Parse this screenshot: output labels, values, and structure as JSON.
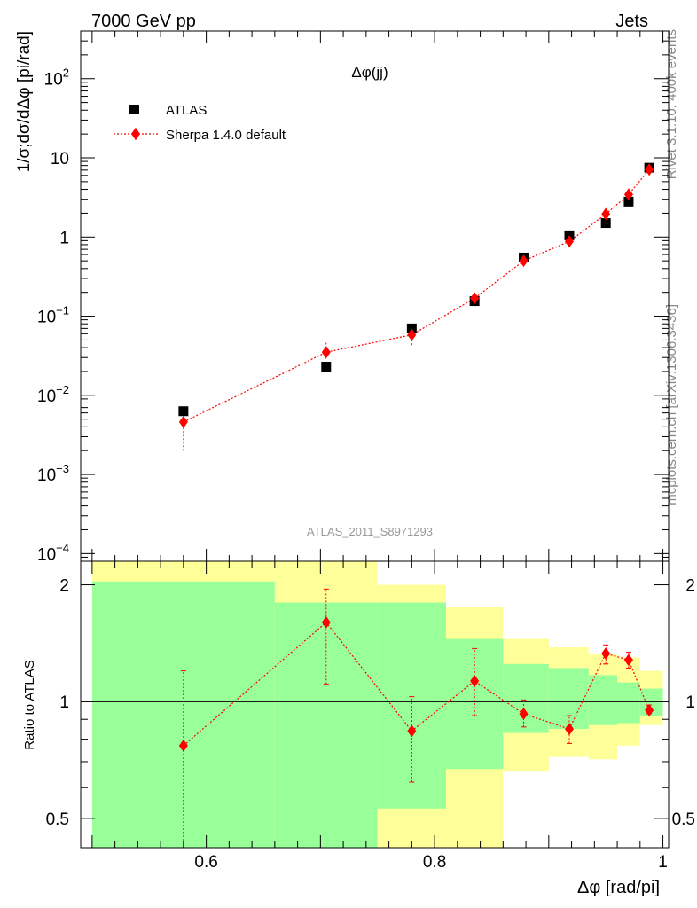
{
  "header": {
    "left": "7000 GeV pp",
    "right": "Jets"
  },
  "side_labels": {
    "rivet": "Rivet 3.1.10,  400k events",
    "mcplots": "mcplots.cern.ch [arXiv:1306.3436]"
  },
  "colors": {
    "data": "#000000",
    "mc": "#ff0000",
    "band_inner": "#99ff99",
    "band_outer": "#ffff99"
  },
  "chart_data": [
    {
      "type": "scatter",
      "title": "Δφ(jj)",
      "analysis": "ATLAS_2011_S8971293",
      "ylabel": "1/σ;dσ/dΔφ [pi/rad]",
      "yscale": "log",
      "ylim": [
        8e-05,
        400
      ],
      "xlim": [
        0.49,
        1.005
      ],
      "ytick_labels": [
        {
          "v": 100,
          "base": "10",
          "exp": "2"
        },
        {
          "v": 10,
          "base": "10",
          "exp": ""
        },
        {
          "v": 1,
          "base": "1",
          "exp": ""
        },
        {
          "v": 0.1,
          "base": "10",
          "exp": "−1"
        },
        {
          "v": 0.01,
          "base": "10",
          "exp": "−2"
        },
        {
          "v": 0.001,
          "base": "10",
          "exp": "−3"
        },
        {
          "v": 0.0001,
          "base": "10",
          "exp": "−4"
        }
      ],
      "legend": [
        "ATLAS",
        "Sherpa 1.4.0 default"
      ],
      "legend_position": "top-left",
      "series": [
        {
          "name": "ATLAS",
          "marker": "square",
          "x": [
            0.58,
            0.705,
            0.78,
            0.835,
            0.878,
            0.918,
            0.95,
            0.97,
            0.988
          ],
          "y": [
            0.0063,
            0.023,
            0.07,
            0.155,
            0.55,
            1.05,
            1.5,
            2.8,
            7.5
          ]
        },
        {
          "name": "Sherpa 1.4.0 default",
          "marker": "diamond",
          "x": [
            0.58,
            0.705,
            0.78,
            0.835,
            0.878,
            0.918,
            0.95,
            0.97,
            0.988
          ],
          "y": [
            0.0046,
            0.035,
            0.058,
            0.168,
            0.5,
            0.88,
            1.95,
            3.45,
            7.1
          ],
          "ylow": [
            0.002,
            0.029,
            0.043,
            0.15,
            0.47,
            0.8,
            1.8,
            3.3,
            6.8
          ],
          "yhigh": [
            0.0055,
            0.047,
            0.07,
            0.19,
            0.53,
            0.96,
            2.1,
            3.6,
            7.4
          ]
        }
      ]
    },
    {
      "type": "scatter",
      "ylabel": "Ratio to ATLAS",
      "xlabel": "Δφ [rad/pi]",
      "yscale": "log",
      "ylim": [
        0.42,
        2.3
      ],
      "xlim": [
        0.49,
        1.005
      ],
      "yticks": [
        0.5,
        1,
        2
      ],
      "ytick_labels": [
        "0.5",
        "1",
        "2"
      ],
      "xticks": [
        0.6,
        0.8,
        1.0
      ],
      "xtick_labels": [
        "0.6",
        "0.8",
        "1"
      ],
      "bands": [
        {
          "x0": 0.5,
          "x1": 0.66,
          "in_lo": 0.4,
          "in_hi": 2.04,
          "out_lo": 0.4,
          "out_hi": 2.4
        },
        {
          "x0": 0.66,
          "x1": 0.75,
          "in_lo": 0.4,
          "in_hi": 1.8,
          "out_lo": 0.4,
          "out_hi": 2.4
        },
        {
          "x0": 0.75,
          "x1": 0.81,
          "in_lo": 0.53,
          "in_hi": 1.8,
          "out_lo": 0.4,
          "out_hi": 2.0
        },
        {
          "x0": 0.81,
          "x1": 0.86,
          "in_lo": 0.67,
          "in_hi": 1.45,
          "out_lo": 0.4,
          "out_hi": 1.75
        },
        {
          "x0": 0.86,
          "x1": 0.9,
          "in_lo": 0.83,
          "in_hi": 1.25,
          "out_lo": 0.66,
          "out_hi": 1.45
        },
        {
          "x0": 0.9,
          "x1": 0.935,
          "in_lo": 0.85,
          "in_hi": 1.22,
          "out_lo": 0.72,
          "out_hi": 1.38
        },
        {
          "x0": 0.935,
          "x1": 0.96,
          "in_lo": 0.87,
          "in_hi": 1.17,
          "out_lo": 0.71,
          "out_hi": 1.33
        },
        {
          "x0": 0.96,
          "x1": 0.98,
          "in_lo": 0.88,
          "in_hi": 1.12,
          "out_lo": 0.77,
          "out_hi": 1.3
        },
        {
          "x0": 0.98,
          "x1": 1.0,
          "in_lo": 0.92,
          "in_hi": 1.08,
          "out_lo": 0.87,
          "out_hi": 1.2
        }
      ],
      "series": [
        {
          "name": "Sherpa 1.4.0 default",
          "x": [
            0.58,
            0.705,
            0.78,
            0.835,
            0.878,
            0.918,
            0.95,
            0.97,
            0.988
          ],
          "y": [
            0.77,
            1.6,
            0.84,
            1.13,
            0.93,
            0.85,
            1.33,
            1.28,
            0.95
          ],
          "ylow": [
            0.42,
            1.11,
            0.62,
            0.92,
            0.86,
            0.78,
            1.25,
            1.22,
            0.93
          ],
          "yhigh": [
            1.2,
            1.95,
            1.03,
            1.37,
            1.01,
            0.92,
            1.4,
            1.34,
            0.98
          ]
        }
      ]
    }
  ]
}
